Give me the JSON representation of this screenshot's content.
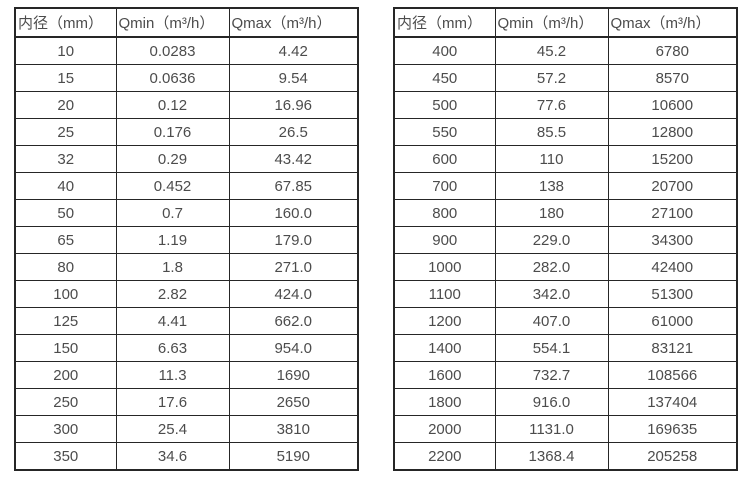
{
  "colors": {
    "background": "#ffffff",
    "border": "#262626",
    "text": "#4c4c4c"
  },
  "chart_data": [
    {
      "type": "table",
      "name": "flow-table-small-diameters",
      "columns": [
        "内径（mm）",
        "Qmin（m³/h）",
        "Qmax（m³/h）"
      ],
      "rows": [
        [
          "10",
          "0.0283",
          "4.42"
        ],
        [
          "15",
          "0.0636",
          "9.54"
        ],
        [
          "20",
          "0.12",
          "16.96"
        ],
        [
          "25",
          "0.176",
          "26.5"
        ],
        [
          "32",
          "0.29",
          "43.42"
        ],
        [
          "40",
          "0.452",
          "67.85"
        ],
        [
          "50",
          "0.7",
          "160.0"
        ],
        [
          "65",
          "1.19",
          "179.0"
        ],
        [
          "80",
          "1.8",
          "271.0"
        ],
        [
          "100",
          "2.82",
          "424.0"
        ],
        [
          "125",
          "4.41",
          "662.0"
        ],
        [
          "150",
          "6.63",
          "954.0"
        ],
        [
          "200",
          "11.3",
          "1690"
        ],
        [
          "250",
          "17.6",
          "2650"
        ],
        [
          "300",
          "25.4",
          "3810"
        ],
        [
          "350",
          "34.6",
          "5190"
        ]
      ]
    },
    {
      "type": "table",
      "name": "flow-table-large-diameters",
      "columns": [
        "内径（mm）",
        "Qmin（m³/h）",
        "Qmax（m³/h）"
      ],
      "rows": [
        [
          "400",
          "45.2",
          "6780"
        ],
        [
          "450",
          "57.2",
          "8570"
        ],
        [
          "500",
          "77.6",
          "10600"
        ],
        [
          "550",
          "85.5",
          "12800"
        ],
        [
          "600",
          "110",
          "15200"
        ],
        [
          "700",
          "138",
          "20700"
        ],
        [
          "800",
          "180",
          "27100"
        ],
        [
          "900",
          "229.0",
          "34300"
        ],
        [
          "1000",
          "282.0",
          "42400"
        ],
        [
          "1100",
          "342.0",
          "51300"
        ],
        [
          "1200",
          "407.0",
          "61000"
        ],
        [
          "1400",
          "554.1",
          "83121"
        ],
        [
          "1600",
          "732.7",
          "108566"
        ],
        [
          "1800",
          "916.0",
          "137404"
        ],
        [
          "2000",
          "1131.0",
          "169635"
        ],
        [
          "2200",
          "1368.4",
          "205258"
        ]
      ]
    }
  ]
}
